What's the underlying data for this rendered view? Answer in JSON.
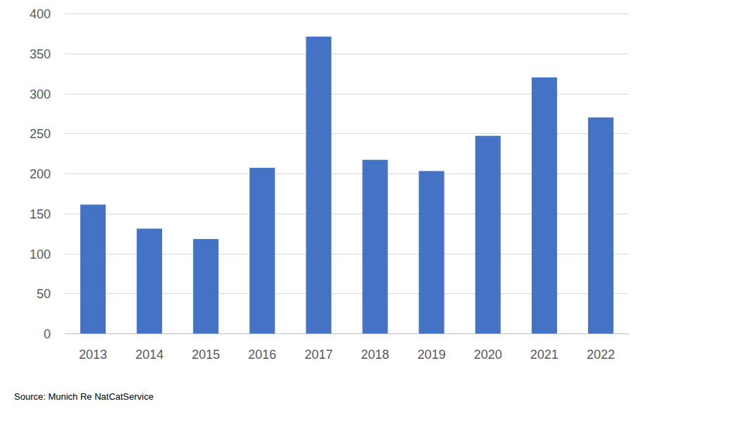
{
  "chart_data": {
    "type": "bar",
    "categories": [
      "2013",
      "2014",
      "2015",
      "2016",
      "2017",
      "2018",
      "2019",
      "2020",
      "2021",
      "2022"
    ],
    "values": [
      161,
      131,
      118,
      207,
      371,
      217,
      203,
      247,
      320,
      270
    ],
    "color": "#4472c4",
    "ylim": [
      0,
      400
    ],
    "yticks": [
      0,
      50,
      100,
      150,
      200,
      250,
      300,
      350,
      400
    ],
    "grid": true,
    "annotations": [
      "Source: Munich Re NatCatService"
    ]
  }
}
